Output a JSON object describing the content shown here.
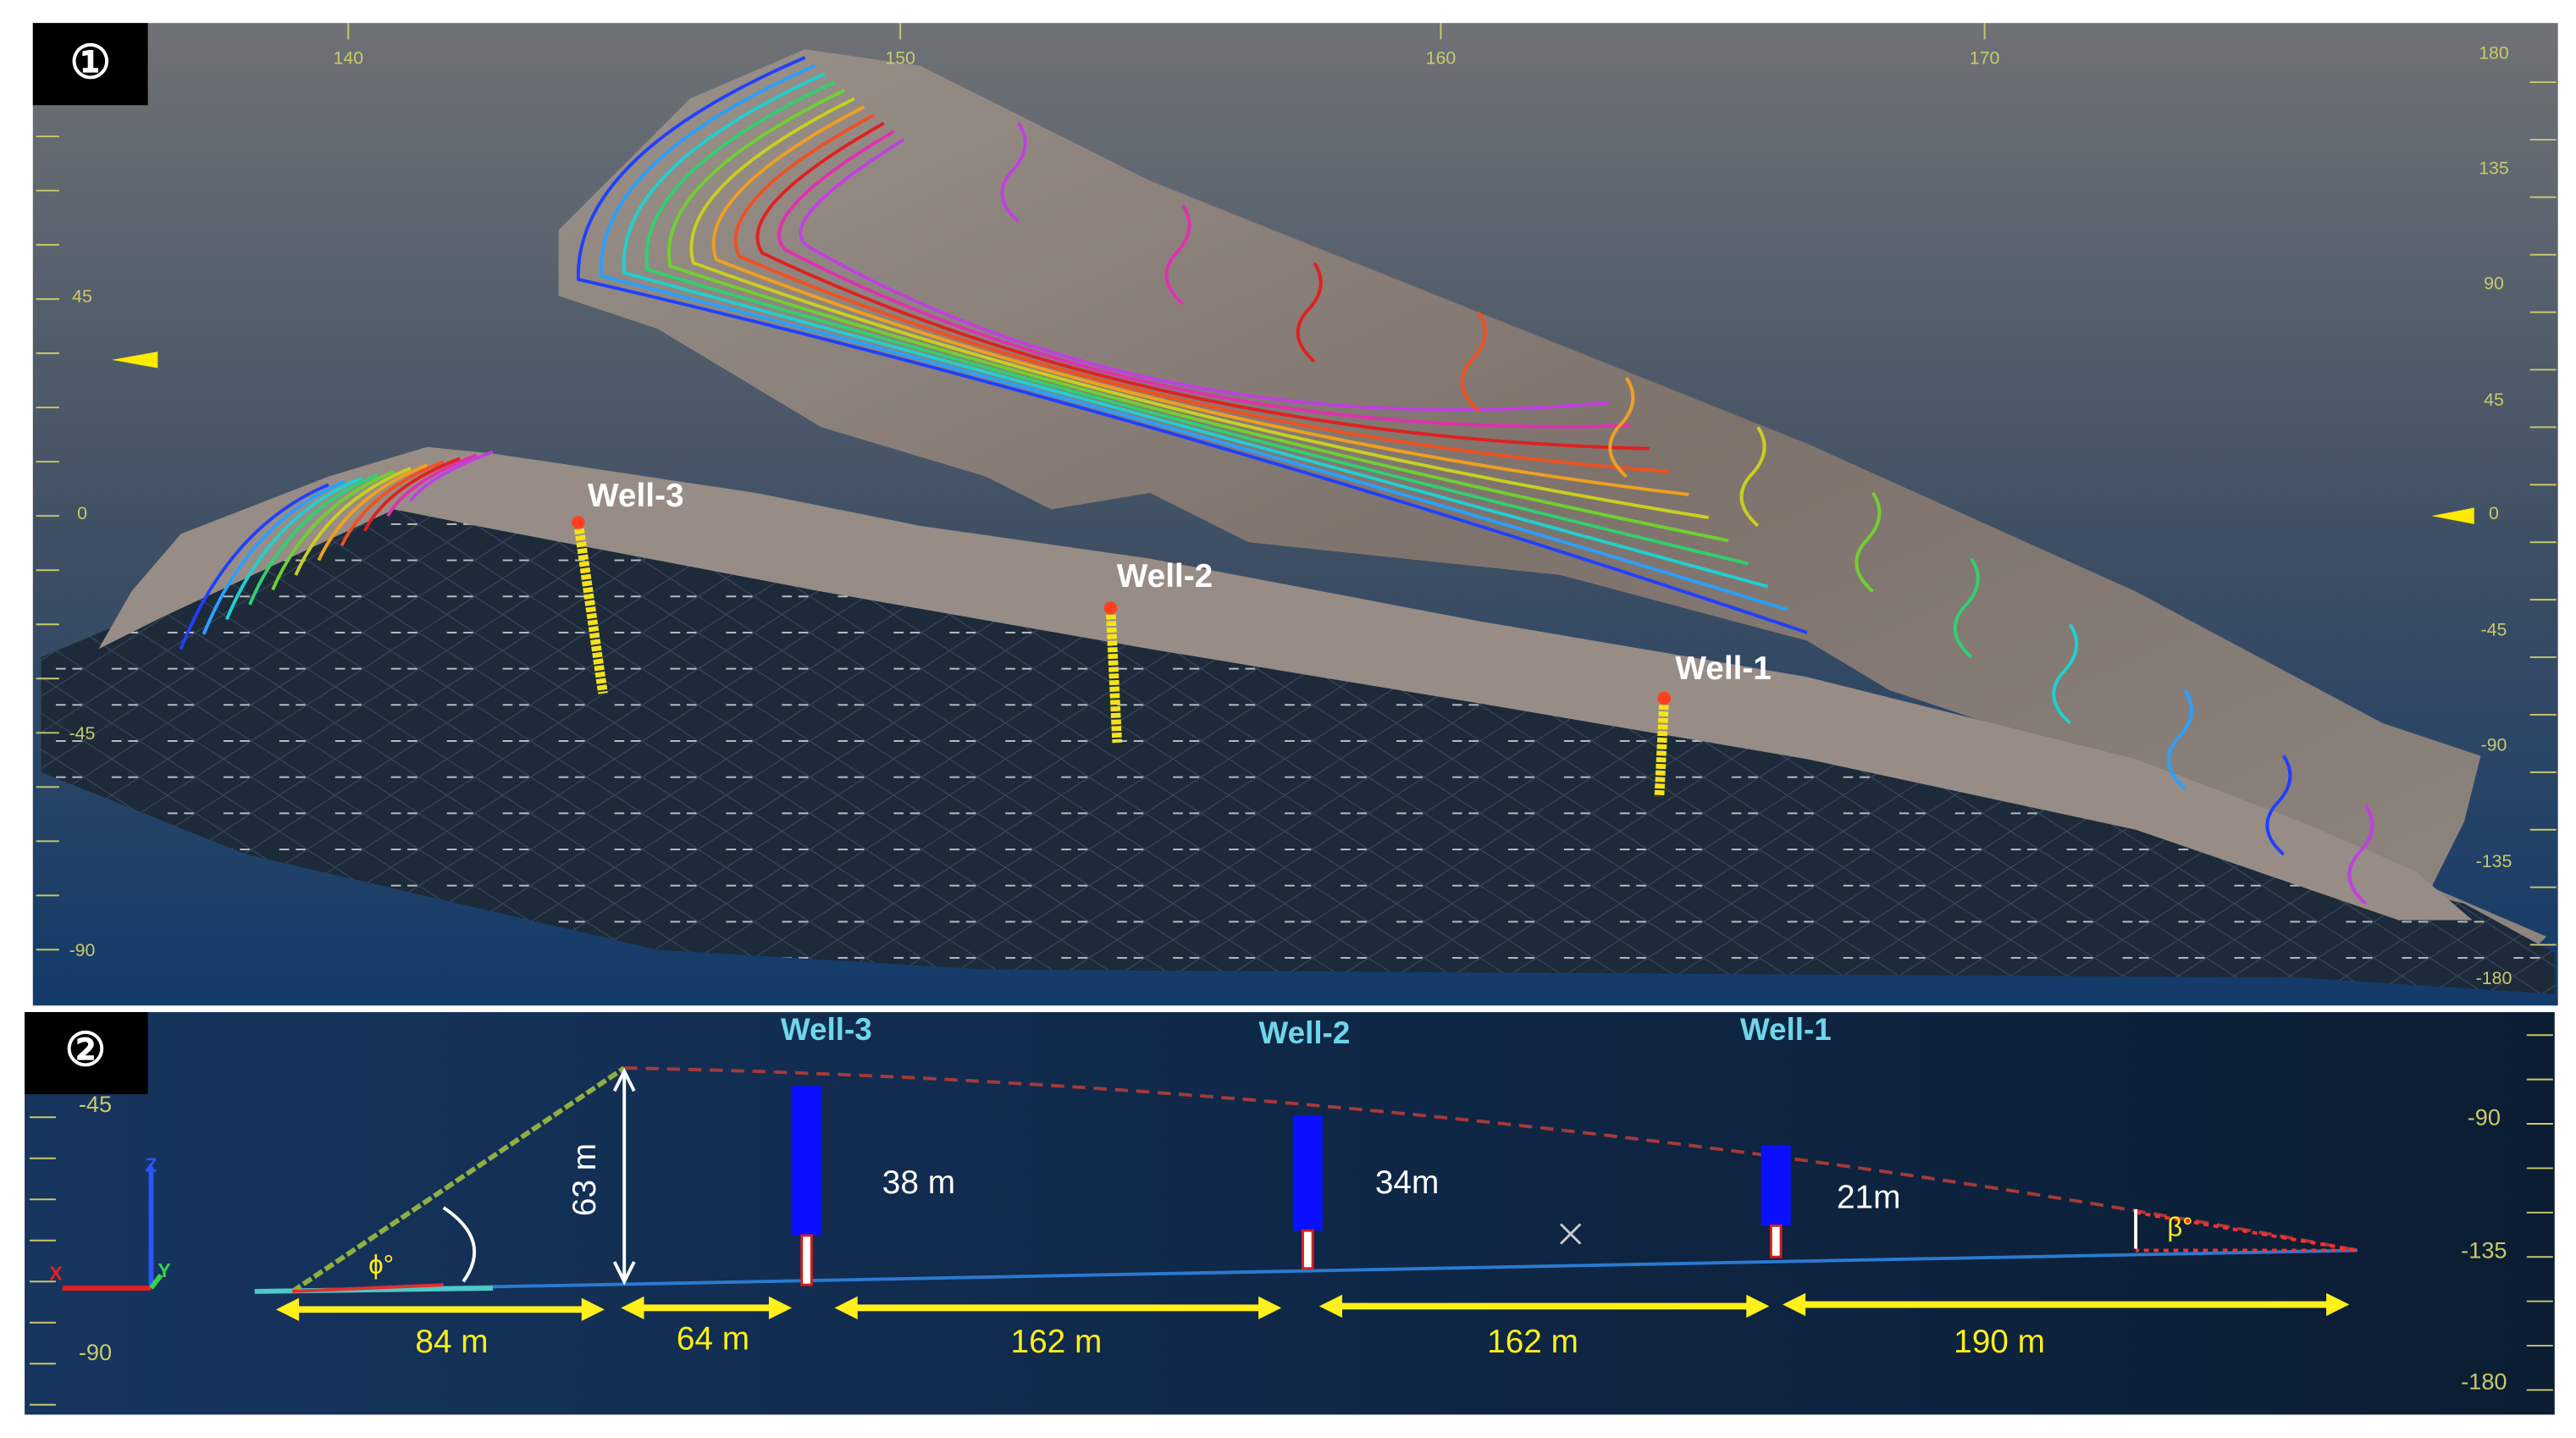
{
  "panels": [
    {
      "badge": "①",
      "top_ticks": [
        "140",
        "150",
        "160",
        "170"
      ],
      "left_ticks": [
        "45",
        "0",
        "-45",
        "-90"
      ],
      "right_ticks": [
        "180",
        "135",
        "90",
        "45",
        "0",
        "-45",
        "-90",
        "-135",
        "-180"
      ],
      "wells": [
        "Well-3",
        "Well-2",
        "Well-1"
      ]
    },
    {
      "badge": "②",
      "left_ticks": [
        "-45",
        "-90"
      ],
      "right_ticks": [
        "-90",
        "-135",
        "-180"
      ],
      "wells": [
        "Well-3",
        "Well-2",
        "Well-1"
      ],
      "well_heights": [
        "38 m",
        "34m",
        "21m"
      ],
      "slope_height": "63 m",
      "distances": [
        "84 m",
        "64 m",
        "162 m",
        "162 m",
        "190 m"
      ],
      "angles": [
        "ϕ°",
        "β°"
      ],
      "axes": [
        "Z",
        "X",
        "Y"
      ]
    }
  ]
}
